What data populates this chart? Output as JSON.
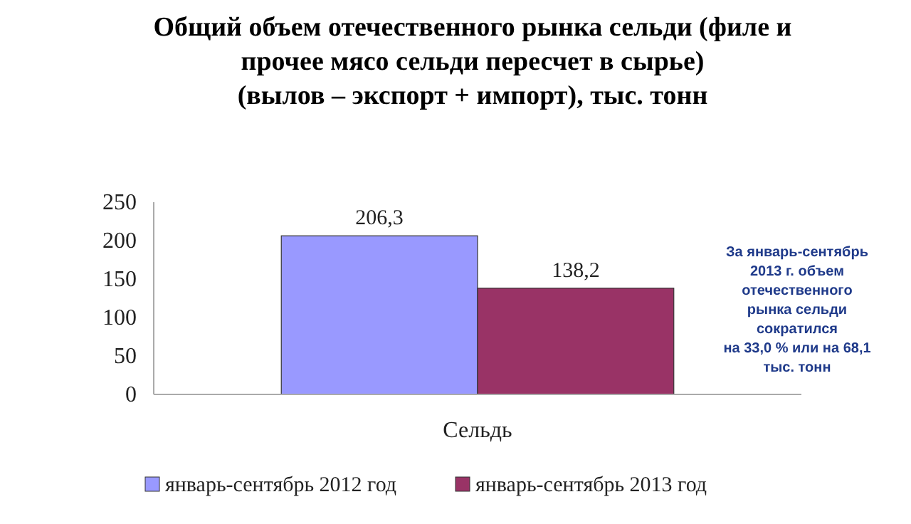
{
  "chart_data": {
    "type": "bar",
    "title": "Общий объем отечественного рынка сельди (филе и\nпрочее мясо сельди пересчет в сырье)\n(вылов – экспорт + импорт), тыс. тонн",
    "categories": [
      "Сельдь"
    ],
    "series": [
      {
        "name": "январь-сентябрь 2012 год",
        "color": "#9999ff",
        "values": [
          206.3
        ],
        "value_labels": [
          "206,3"
        ]
      },
      {
        "name": "январь-сентябрь 2013 год",
        "color": "#993366",
        "values": [
          138.2
        ],
        "value_labels": [
          "138,2"
        ]
      }
    ],
    "ylim": [
      0,
      250
    ],
    "yticks": [
      0,
      50,
      100,
      150,
      200,
      250
    ],
    "grid": false,
    "legend": "bottom",
    "annotations": [
      "За январь-сентябрь\n2013 г. объем\nотечественного\nрынка сельди\nсократился\nна 33,0 % или на 68,1\nтыс. тонн"
    ]
  }
}
